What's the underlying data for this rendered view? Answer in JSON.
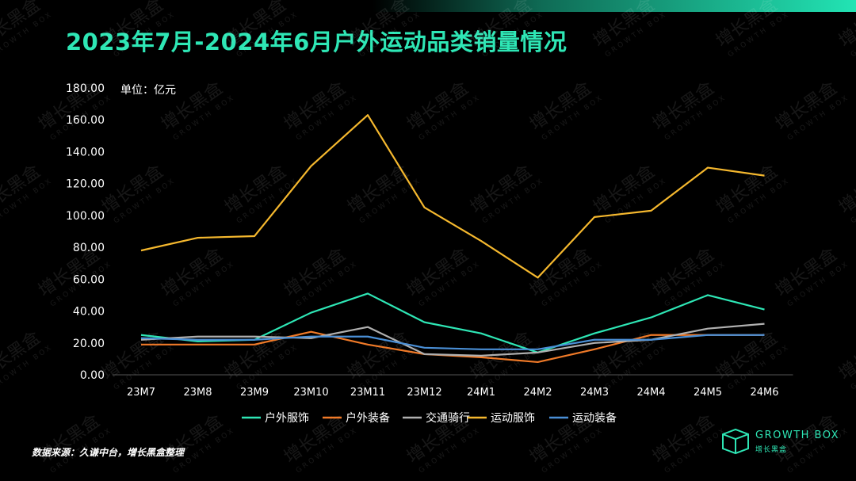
{
  "title": "2023年7月-2024年6月户外运动品类销量情况",
  "unit_label": "单位：亿元",
  "source": "数据来源：久谦中台，增长黑盒整理",
  "brand": {
    "name": "GROWTH BOX",
    "sub": "增长黑盒"
  },
  "watermark": {
    "text": "增长黑盒",
    "sub": "GROWTH BOX"
  },
  "chart_data": {
    "type": "line",
    "categories": [
      "23M7",
      "23M8",
      "23M9",
      "23M10",
      "23M11",
      "23M12",
      "24M1",
      "24M2",
      "24M3",
      "24M4",
      "24M5",
      "24M6"
    ],
    "ylim": [
      0,
      180
    ],
    "yticks": [
      "0.00",
      "20.00",
      "40.00",
      "60.00",
      "80.00",
      "100.00",
      "120.00",
      "140.00",
      "160.00",
      "180.00"
    ],
    "grid": false,
    "legend_position": "bottom",
    "series": [
      {
        "name": "户外服饰",
        "color": "#2ee6b5",
        "values": [
          25,
          21,
          22,
          39,
          51,
          33,
          26,
          14,
          26,
          36,
          50,
          41
        ]
      },
      {
        "name": "户外装备",
        "color": "#f07a28",
        "values": [
          19,
          19,
          19,
          27,
          19,
          13,
          11,
          8,
          16,
          25,
          25,
          25
        ]
      },
      {
        "name": "交通骑行",
        "color": "#b0b0b0",
        "values": [
          22,
          24,
          24,
          23,
          30,
          13,
          12,
          14,
          20,
          22,
          29,
          32
        ]
      },
      {
        "name": "运动服饰",
        "color": "#f5b82e",
        "values": [
          78,
          86,
          87,
          131,
          163,
          105,
          84,
          61,
          99,
          103,
          130,
          125
        ]
      },
      {
        "name": "运动装备",
        "color": "#4a8fd6",
        "values": [
          23,
          22,
          22,
          24,
          24,
          17,
          16,
          16,
          22,
          22,
          25,
          25
        ]
      }
    ]
  }
}
